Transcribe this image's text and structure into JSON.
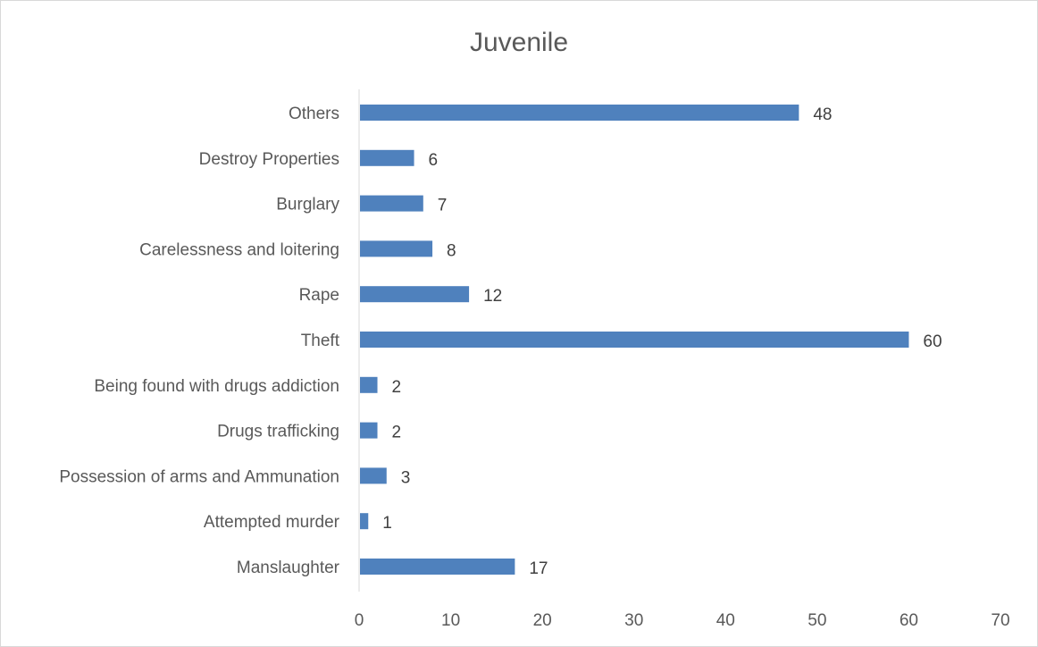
{
  "chart_data": {
    "type": "bar",
    "orientation": "horizontal",
    "title": "Juvenile",
    "categories": [
      "Others",
      "Destroy Properties",
      "Burglary",
      "Carelessness and loitering",
      "Rape",
      "Theft",
      "Being found with drugs addiction",
      "Drugs trafficking",
      "Possession of arms and Ammunation",
      "Attempted murder",
      "Manslaughter"
    ],
    "values": [
      48,
      6,
      7,
      8,
      12,
      60,
      2,
      2,
      3,
      1,
      17
    ],
    "xlim": [
      0,
      70
    ],
    "xticks": [
      0,
      10,
      20,
      30,
      40,
      50,
      60,
      70
    ],
    "xlabel": "",
    "ylabel": "",
    "grid": false,
    "legend": "none",
    "bar_color": "#4f81bd",
    "data_labels": true
  }
}
